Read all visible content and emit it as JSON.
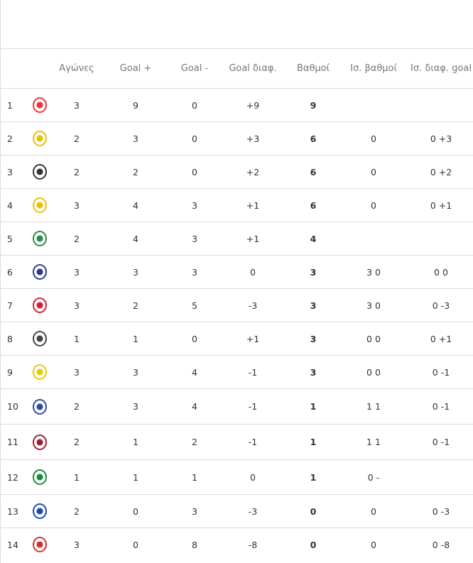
{
  "headers": [
    "",
    "",
    "Αγώνες",
    "Goal +",
    "Goal -",
    "Goal διαφ.",
    "Βαθμοί",
    "Ισ. βαθμοί",
    "Ισ. διαφ. goal"
  ],
  "rows": [
    {
      "rank": "1",
      "logo": "olympiacos-logo",
      "color": "#e33",
      "played": "3",
      "gf": "9",
      "ga": "0",
      "gd": "+9",
      "pts": "9",
      "h2h_pts": "",
      "h2h_gd": ""
    },
    {
      "rank": "2",
      "logo": "aek-logo",
      "color": "#e8c000",
      "played": "2",
      "gf": "3",
      "ga": "0",
      "gd": "+3",
      "pts": "6",
      "h2h_pts": "0",
      "h2h_gd": "0 +3"
    },
    {
      "rank": "3",
      "logo": "paok-logo",
      "color": "#333",
      "played": "2",
      "gf": "2",
      "ga": "0",
      "gd": "+2",
      "pts": "6",
      "h2h_pts": "0",
      "h2h_gd": "0 +2"
    },
    {
      "rank": "4",
      "logo": "aris-logo",
      "color": "#f0c000",
      "played": "3",
      "gf": "4",
      "ga": "3",
      "gd": "+1",
      "pts": "6",
      "h2h_pts": "0",
      "h2h_gd": "0 +1"
    },
    {
      "rank": "5",
      "logo": "levadiakos-logo",
      "color": "#2a8a4a",
      "played": "2",
      "gf": "4",
      "ga": "3",
      "gd": "+1",
      "pts": "4",
      "h2h_pts": "",
      "h2h_gd": ""
    },
    {
      "rank": "6",
      "logo": "atromitos-logo",
      "color": "#2a3a8a",
      "played": "3",
      "gf": "3",
      "ga": "3",
      "gd": "0",
      "pts": "3",
      "h2h_pts": "3 0",
      "h2h_gd": "0 0"
    },
    {
      "rank": "7",
      "logo": "volos-logo",
      "color": "#d02030",
      "played": "3",
      "gf": "2",
      "ga": "5",
      "gd": "-3",
      "pts": "3",
      "h2h_pts": "3 0",
      "h2h_gd": "0 -3"
    },
    {
      "rank": "8",
      "logo": "ofi-logo",
      "color": "#444",
      "played": "1",
      "gf": "1",
      "ga": "0",
      "gd": "+1",
      "pts": "3",
      "h2h_pts": "0 0",
      "h2h_gd": "0 +1"
    },
    {
      "rank": "9",
      "logo": "panetolikos-logo",
      "color": "#e8c800",
      "played": "3",
      "gf": "3",
      "ga": "4",
      "gd": "-1",
      "pts": "3",
      "h2h_pts": "0 0",
      "h2h_gd": "0 -1"
    },
    {
      "rank": "10",
      "logo": "kifisia-logo",
      "color": "#2a4aa0",
      "played": "2",
      "gf": "3",
      "ga": "4",
      "gd": "-1",
      "pts": "1",
      "h2h_pts": "1 1",
      "h2h_gd": "0 -1"
    },
    {
      "rank": "11",
      "logo": "larissa-logo",
      "color": "#a02030",
      "played": "2",
      "gf": "1",
      "ga": "2",
      "gd": "-1",
      "pts": "1",
      "h2h_pts": "1 1",
      "h2h_gd": "0 -1"
    },
    {
      "rank": "12",
      "logo": "panathinaikos-logo",
      "color": "#1a8a3a",
      "played": "1",
      "gf": "1",
      "ga": "1",
      "gd": "0",
      "pts": "1",
      "h2h_pts": "0 -",
      "h2h_gd": ""
    },
    {
      "rank": "13",
      "logo": "asteras-logo",
      "color": "#1a4ab0",
      "played": "2",
      "gf": "0",
      "ga": "3",
      "gd": "-3",
      "pts": "0",
      "h2h_pts": "0",
      "h2h_gd": "0 -3"
    },
    {
      "rank": "14",
      "logo": "panserraikos-logo",
      "color": "#d03030",
      "played": "3",
      "gf": "0",
      "ga": "8",
      "gd": "-8",
      "pts": "0",
      "h2h_pts": "0",
      "h2h_gd": "0 -8"
    }
  ]
}
